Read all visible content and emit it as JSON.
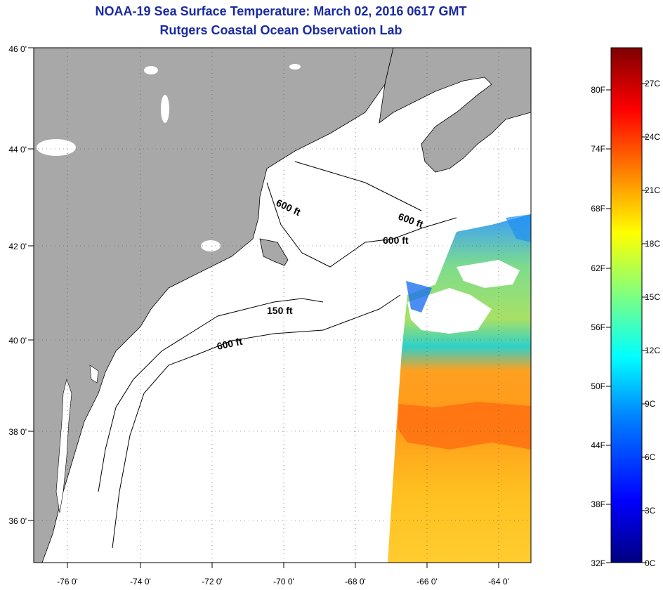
{
  "header": {
    "title": "NOAA-19 Sea Surface Temperature:  March 02, 2016 0617 GMT",
    "subtitle": "Rutgers Coastal Ocean Observation Lab"
  },
  "map": {
    "region": "U.S. Northeast coast / Gulf of Maine to Mid-Atlantic Bight",
    "lon_range": [
      -77,
      -63
    ],
    "lat_range": [
      35,
      46
    ],
    "lon_labels": [
      "-76 0'",
      "-74 0'",
      "-72 0'",
      "-70 0'",
      "-68 0'",
      "-66 0'",
      "-64 0'"
    ],
    "lat_labels": [
      "46 0'",
      "44 0'",
      "42 0'",
      "40 0'",
      "38 0'",
      "36 0'"
    ],
    "contour_labels": [
      {
        "text": "600 ft"
      },
      {
        "text": "600 ft"
      },
      {
        "text": "600 ft"
      },
      {
        "text": "150 ft"
      },
      {
        "text": "600 ft"
      }
    ],
    "colors": {
      "land": "#a8a8a8",
      "ocean_no_data": "#ffffff",
      "contour": "#000000"
    }
  },
  "colorbar": {
    "fahrenheit_labels": [
      "80F",
      "74F",
      "68F",
      "62F",
      "56F",
      "50F",
      "44F",
      "38F",
      "32F"
    ],
    "celsius_labels": [
      "27C",
      "24C",
      "21C",
      "18C",
      "15C",
      "12C",
      "9C",
      "6C",
      "3C",
      "0C"
    ],
    "gradient_stops": [
      "#00007f",
      "#0000ff",
      "#007fff",
      "#00ffff",
      "#7fff7f",
      "#ffff00",
      "#ff7f00",
      "#ff0000",
      "#7f0000"
    ]
  }
}
